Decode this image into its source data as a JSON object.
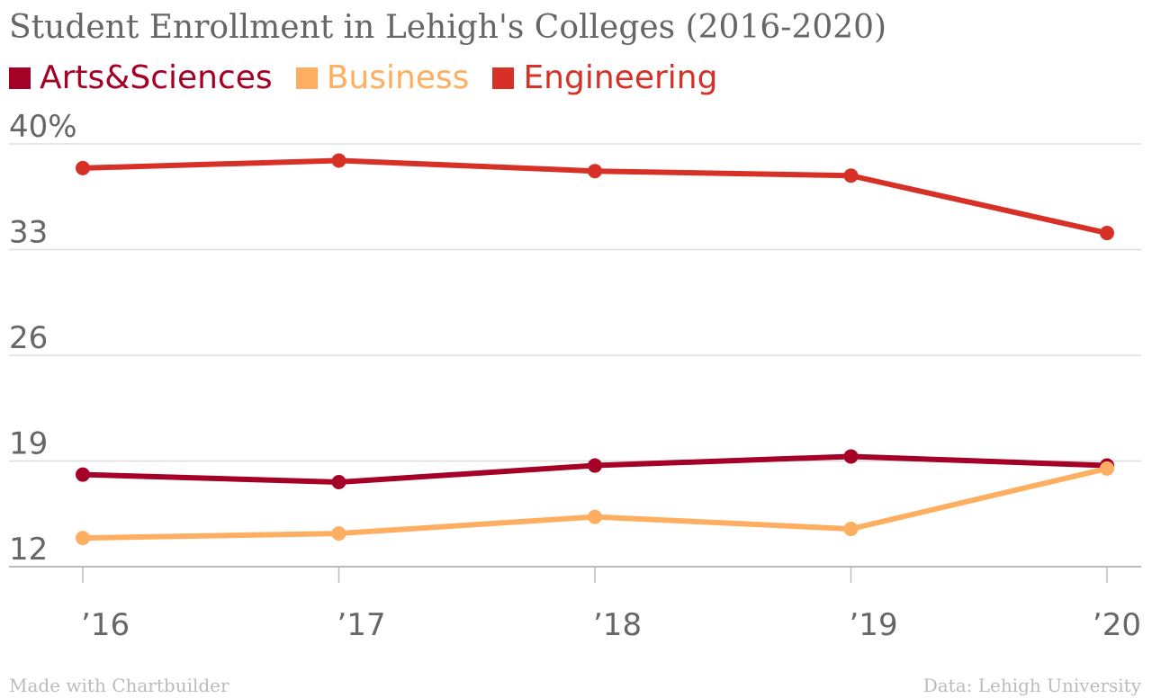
{
  "chart_data": {
    "type": "line",
    "title": "Student Enrollment in Lehigh's Colleges (2016-2020)",
    "categories": [
      "’16",
      "’17",
      "’18",
      "’19",
      "’20"
    ],
    "y_tick_labels": [
      "40%",
      "33",
      "26",
      "19",
      "12"
    ],
    "y_ticks": [
      40,
      33,
      26,
      19,
      12
    ],
    "ylim": [
      12,
      40
    ],
    "grid": true,
    "legend_position": "top-left",
    "series": [
      {
        "name": "Arts&Sciences",
        "color": "#a50026",
        "values": [
          18.1,
          17.6,
          18.7,
          19.3,
          18.7
        ]
      },
      {
        "name": "Business",
        "color": "#fdae61",
        "values": [
          13.9,
          14.2,
          15.3,
          14.5,
          18.5
        ]
      },
      {
        "name": "Engineering",
        "color": "#d73027",
        "values": [
          38.4,
          38.9,
          38.2,
          37.9,
          34.1
        ]
      }
    ]
  },
  "footer": {
    "credit": "Made with Chartbuilder",
    "source": "Data: Lehigh University"
  }
}
